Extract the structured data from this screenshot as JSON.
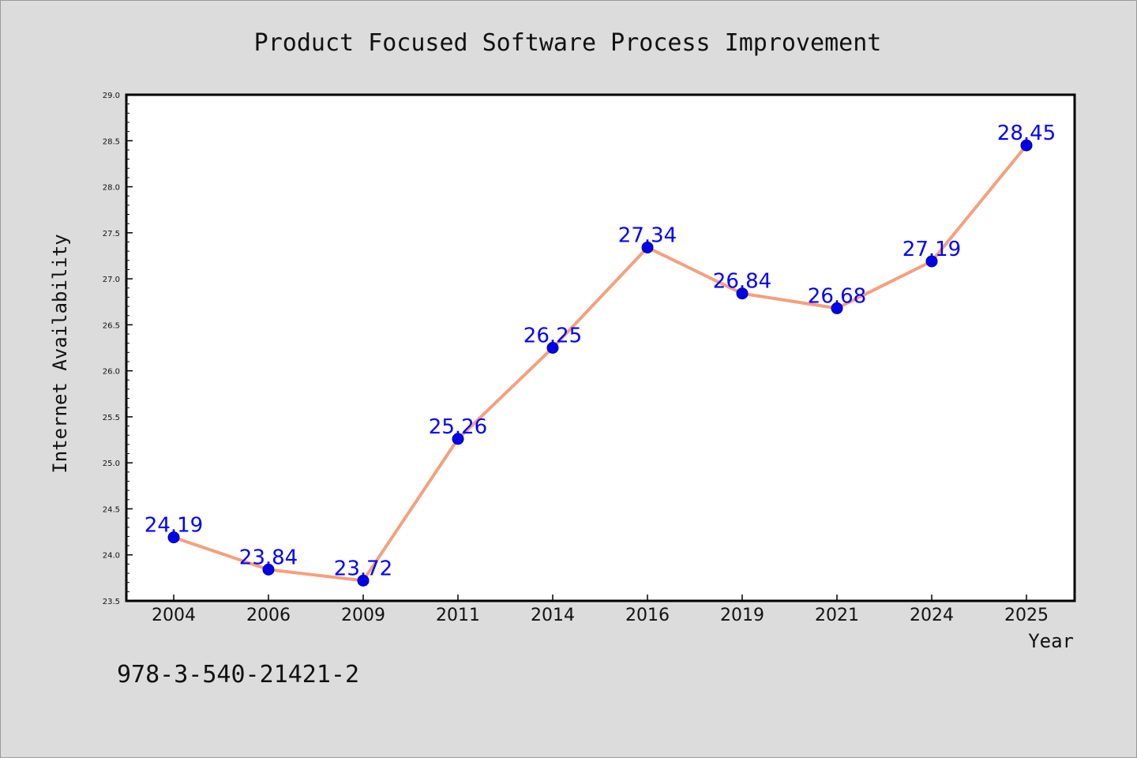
{
  "chart_data": {
    "type": "line",
    "title": "Product Focused Software Process Improvement",
    "xlabel": "Year",
    "ylabel": "Internet Availability",
    "categories": [
      "2004",
      "2006",
      "2009",
      "2011",
      "2014",
      "2016",
      "2019",
      "2021",
      "2024",
      "2025"
    ],
    "values": [
      24.19,
      23.84,
      23.72,
      25.26,
      26.25,
      27.34,
      26.84,
      26.68,
      27.19,
      28.45
    ],
    "data_labels": [
      "24.19",
      "23.84",
      "23.72",
      "25.26",
      "26.25",
      "27.34",
      "26.84",
      "26.68",
      "27.19",
      "28.45"
    ],
    "ylim": [
      23.5,
      29.0
    ],
    "yticks": [
      "23.5",
      "24.0",
      "24.5",
      "25.0",
      "25.5",
      "26.0",
      "26.5",
      "27.0",
      "27.5",
      "28.0",
      "28.5",
      "29.0"
    ],
    "grid": false,
    "legend": "none",
    "line_color": "#f4a07e",
    "marker_color": "#0000ee",
    "label_color": "#0000ff"
  },
  "footer": {
    "isbn": "978-3-540-21421-2"
  }
}
